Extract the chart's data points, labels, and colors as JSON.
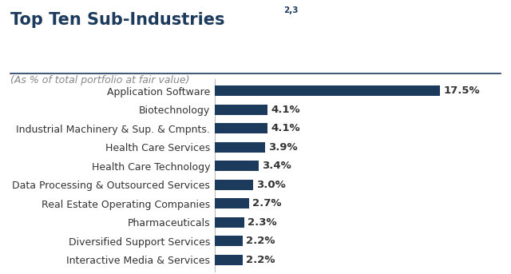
{
  "title": "Top Ten Sub-Industries",
  "title_superscript": "2,3",
  "subtitle": "(As % of total portfolio at fair value)",
  "categories": [
    "Interactive Media & Services",
    "Diversified Support Services",
    "Pharmaceuticals",
    "Real Estate Operating Companies",
    "Data Processing & Outsourced Services",
    "Health Care Technology",
    "Health Care Services",
    "Industrial Machinery & Sup. & Cmpnts.",
    "Biotechnology",
    "Application Software"
  ],
  "values": [
    2.2,
    2.2,
    2.3,
    2.7,
    3.0,
    3.4,
    3.9,
    4.1,
    4.1,
    17.5
  ],
  "labels": [
    "2.2%",
    "2.2%",
    "2.3%",
    "2.7%",
    "3.0%",
    "3.4%",
    "3.9%",
    "4.1%",
    "4.1%",
    "17.5%"
  ],
  "bar_color": "#1b3a5c",
  "title_color": "#1b3a5c",
  "subtitle_color": "#888888",
  "label_color": "#333333",
  "value_color": "#333333",
  "background_color": "#ffffff",
  "divider_color": "#1b3a5c",
  "xlim": [
    0,
    21
  ],
  "title_fontsize": 15,
  "subtitle_fontsize": 9,
  "label_fontsize": 9,
  "value_fontsize": 9.5,
  "bar_height": 0.55
}
